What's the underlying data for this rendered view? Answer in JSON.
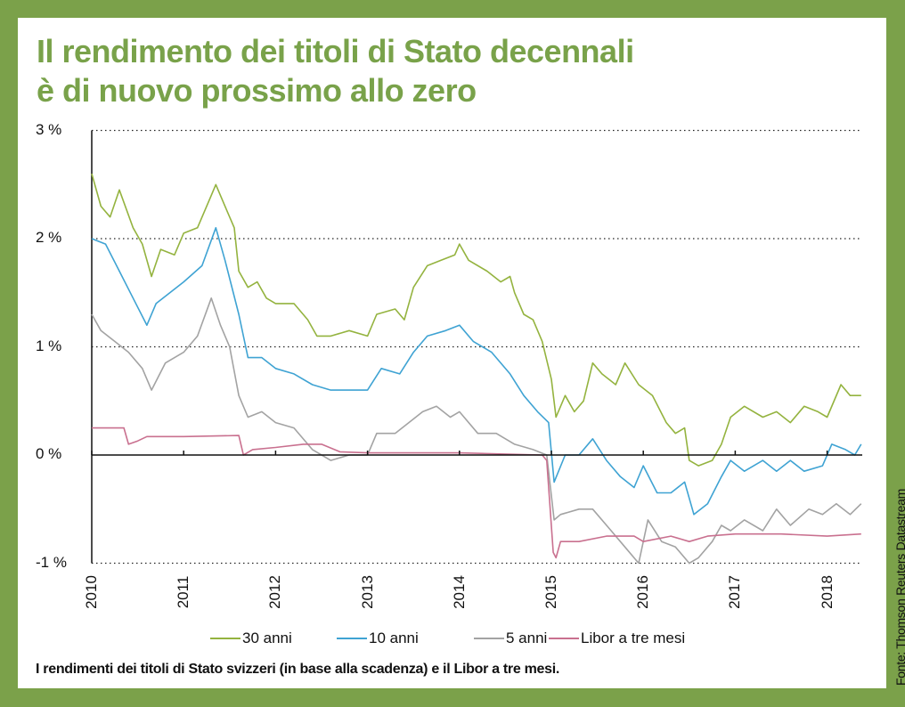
{
  "title_lines": [
    "Il rendimento dei titoli di Stato decennali",
    "è di nuovo prossimo allo zero"
  ],
  "caption": "I rendimenti dei titoli di Stato svizzeri (in base alla scadenza) e il Libor a tre mesi.",
  "source": "Fonte: Thomson Reuters Datastream",
  "chart_data": {
    "type": "line",
    "title": "Il rendimento dei titoli di Stato decennali è di nuovo prossimo allo zero",
    "xlim": [
      2010,
      2018.37
    ],
    "ylim": [
      -1,
      3
    ],
    "y_ticks": [
      3,
      2,
      1,
      0,
      -1
    ],
    "y_tick_labels": [
      "3 %",
      "2 %",
      "1 %",
      "0 %",
      "-1 %"
    ],
    "x_ticks": [
      2010,
      2011,
      2012,
      2013,
      2014,
      2015,
      2016,
      2017,
      2018
    ],
    "x_tick_labels": [
      "2010",
      "2011",
      "2012",
      "2013",
      "2014",
      "2015",
      "2016",
      "2017",
      "2018"
    ],
    "grid": "horizontal dotted",
    "legend_position": "bottom",
    "series": [
      {
        "name": "30 anni",
        "color": "#94b33f",
        "x": [
          2010.0,
          2010.1,
          2010.2,
          2010.3,
          2010.45,
          2010.55,
          2010.65,
          2010.75,
          2010.9,
          2011.0,
          2011.15,
          2011.3,
          2011.35,
          2011.45,
          2011.55,
          2011.6,
          2011.7,
          2011.8,
          2011.9,
          2012.0,
          2012.2,
          2012.35,
          2012.45,
          2012.6,
          2012.8,
          2013.0,
          2013.1,
          2013.3,
          2013.4,
          2013.5,
          2013.65,
          2013.8,
          2013.95,
          2014.0,
          2014.1,
          2014.3,
          2014.45,
          2014.55,
          2014.6,
          2014.7,
          2014.8,
          2014.9,
          2015.0,
          2015.05,
          2015.15,
          2015.25,
          2015.35,
          2015.45,
          2015.55,
          2015.7,
          2015.8,
          2015.95,
          2016.1,
          2016.25,
          2016.35,
          2016.45,
          2016.5,
          2016.6,
          2016.75,
          2016.85,
          2016.95,
          2017.1,
          2017.3,
          2017.45,
          2017.6,
          2017.75,
          2017.9,
          2018.0,
          2018.15,
          2018.25,
          2018.37
        ],
        "y": [
          2.6,
          2.3,
          2.2,
          2.45,
          2.1,
          1.95,
          1.65,
          1.9,
          1.85,
          2.05,
          2.1,
          2.4,
          2.5,
          2.3,
          2.1,
          1.7,
          1.55,
          1.6,
          1.45,
          1.4,
          1.4,
          1.25,
          1.1,
          1.1,
          1.15,
          1.1,
          1.3,
          1.35,
          1.25,
          1.55,
          1.75,
          1.8,
          1.85,
          1.95,
          1.8,
          1.7,
          1.6,
          1.65,
          1.5,
          1.3,
          1.25,
          1.05,
          0.7,
          0.35,
          0.55,
          0.4,
          0.5,
          0.85,
          0.75,
          0.65,
          0.85,
          0.65,
          0.55,
          0.3,
          0.2,
          0.25,
          -0.05,
          -0.1,
          -0.05,
          0.1,
          0.35,
          0.45,
          0.35,
          0.4,
          0.3,
          0.45,
          0.4,
          0.35,
          0.65,
          0.55,
          0.55
        ]
      },
      {
        "name": "10 anni",
        "color": "#3fa3d3",
        "x": [
          2010.0,
          2010.15,
          2010.3,
          2010.45,
          2010.6,
          2010.7,
          2010.85,
          2011.0,
          2011.2,
          2011.35,
          2011.45,
          2011.6,
          2011.7,
          2011.85,
          2012.0,
          2012.2,
          2012.4,
          2012.6,
          2012.8,
          2013.0,
          2013.15,
          2013.35,
          2013.5,
          2013.65,
          2013.85,
          2014.0,
          2014.15,
          2014.35,
          2014.55,
          2014.7,
          2014.85,
          2014.97,
          2015.03,
          2015.15,
          2015.3,
          2015.45,
          2015.6,
          2015.75,
          2015.9,
          2016.0,
          2016.15,
          2016.3,
          2016.45,
          2016.55,
          2016.7,
          2016.85,
          2016.95,
          2017.1,
          2017.3,
          2017.45,
          2017.6,
          2017.75,
          2017.95,
          2018.05,
          2018.2,
          2018.3,
          2018.37
        ],
        "y": [
          2.0,
          1.95,
          1.7,
          1.45,
          1.2,
          1.4,
          1.5,
          1.6,
          1.75,
          2.1,
          1.8,
          1.3,
          0.9,
          0.9,
          0.8,
          0.75,
          0.65,
          0.6,
          0.6,
          0.6,
          0.8,
          0.75,
          0.95,
          1.1,
          1.15,
          1.2,
          1.05,
          0.95,
          0.75,
          0.55,
          0.4,
          0.3,
          -0.25,
          0.0,
          0.0,
          0.15,
          -0.05,
          -0.2,
          -0.3,
          -0.1,
          -0.35,
          -0.35,
          -0.25,
          -0.55,
          -0.45,
          -0.2,
          -0.05,
          -0.15,
          -0.05,
          -0.15,
          -0.05,
          -0.15,
          -0.1,
          0.1,
          0.05,
          0.0,
          0.1
        ]
      },
      {
        "name": "5 anni",
        "color": "#a3a3a3",
        "x": [
          2010.0,
          2010.1,
          2010.25,
          2010.4,
          2010.55,
          2010.65,
          2010.8,
          2011.0,
          2011.15,
          2011.3,
          2011.4,
          2011.5,
          2011.6,
          2011.7,
          2011.85,
          2012.0,
          2012.2,
          2012.4,
          2012.6,
          2012.8,
          2013.0,
          2013.1,
          2013.3,
          2013.45,
          2013.6,
          2013.75,
          2013.9,
          2014.0,
          2014.2,
          2014.4,
          2014.6,
          2014.8,
          2014.95,
          2015.03,
          2015.1,
          2015.3,
          2015.45,
          2015.65,
          2015.8,
          2015.95,
          2016.05,
          2016.2,
          2016.35,
          2016.5,
          2016.6,
          2016.75,
          2016.85,
          2016.95,
          2017.1,
          2017.3,
          2017.45,
          2017.6,
          2017.8,
          2017.95,
          2018.1,
          2018.25,
          2018.37
        ],
        "y": [
          1.3,
          1.15,
          1.05,
          0.95,
          0.8,
          0.6,
          0.85,
          0.95,
          1.1,
          1.45,
          1.2,
          1.0,
          0.55,
          0.35,
          0.4,
          0.3,
          0.25,
          0.05,
          -0.05,
          0.0,
          0.0,
          0.2,
          0.2,
          0.3,
          0.4,
          0.45,
          0.35,
          0.4,
          0.2,
          0.2,
          0.1,
          0.05,
          0.0,
          -0.6,
          -0.55,
          -0.5,
          -0.5,
          -0.7,
          -0.85,
          -1.0,
          -0.6,
          -0.8,
          -0.85,
          -1.0,
          -0.95,
          -0.8,
          -0.65,
          -0.7,
          -0.6,
          -0.7,
          -0.5,
          -0.65,
          -0.5,
          -0.55,
          -0.45,
          -0.55,
          -0.45
        ]
      },
      {
        "name": "Libor a tre mesi",
        "color": "#c9708f",
        "x": [
          2010.0,
          2010.35,
          2010.4,
          2010.5,
          2010.6,
          2011.0,
          2011.6,
          2011.65,
          2011.75,
          2012.0,
          2012.3,
          2012.5,
          2012.7,
          2013.0,
          2014.0,
          2014.9,
          2014.95,
          2015.02,
          2015.05,
          2015.1,
          2015.3,
          2015.6,
          2015.9,
          2016.0,
          2016.3,
          2016.5,
          2016.7,
          2017.0,
          2017.5,
          2018.0,
          2018.37
        ],
        "y": [
          0.25,
          0.25,
          0.1,
          0.13,
          0.17,
          0.17,
          0.18,
          0.0,
          0.05,
          0.07,
          0.1,
          0.1,
          0.03,
          0.02,
          0.02,
          0.0,
          -0.05,
          -0.9,
          -0.95,
          -0.8,
          -0.8,
          -0.75,
          -0.75,
          -0.8,
          -0.75,
          -0.8,
          -0.75,
          -0.73,
          -0.73,
          -0.75,
          -0.73
        ]
      }
    ]
  }
}
